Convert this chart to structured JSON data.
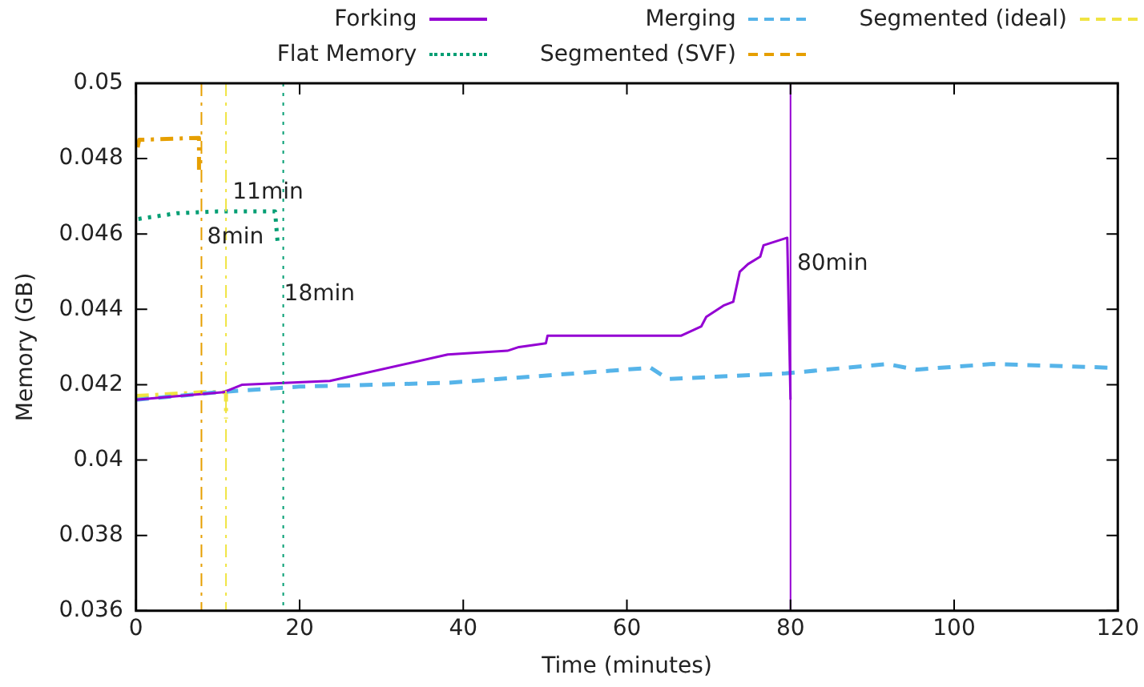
{
  "chart_data": {
    "type": "line",
    "xlabel": "Time (minutes)",
    "ylabel": "Memory (GB)",
    "xlim": [
      0,
      120
    ],
    "xticks": [
      0,
      20,
      40,
      60,
      80,
      100,
      120
    ],
    "ylim": [
      0.036,
      0.05
    ],
    "yticks": [
      0.036,
      0.038,
      0.04,
      0.042,
      0.044,
      0.046,
      0.048,
      0.05
    ],
    "grid": false,
    "legend": "top",
    "marker": "none",
    "series": [
      {
        "name": "Forking",
        "color": "#9400d3",
        "line_style": "solid",
        "x": [
          0,
          10.7,
          13,
          23.7,
          38.1,
          45.4,
          46.8,
          50.1,
          50.3,
          66.6,
          69.1,
          69.7,
          71.8,
          73,
          73.8,
          74.8,
          76.3,
          76.7,
          79.6,
          80
        ],
        "values": [
          0.0416,
          0.0418,
          0.042,
          0.0421,
          0.0428,
          0.0429,
          0.043,
          0.0431,
          0.0433,
          0.0433,
          0.04355,
          0.0438,
          0.0441,
          0.0442,
          0.045,
          0.0452,
          0.0454,
          0.0457,
          0.0459,
          0.0416
        ]
      },
      {
        "name": "Merging",
        "color": "#56b4e9",
        "line_style": "dashed",
        "x": [
          0,
          10,
          20,
          38.1,
          62.9,
          65,
          79.4,
          91.8,
          95.3,
          104.7,
          119.2
        ],
        "values": [
          0.0416,
          0.0418,
          0.04195,
          0.04205,
          0.04245,
          0.04215,
          0.0423,
          0.04255,
          0.0424,
          0.04255,
          0.04245
        ]
      },
      {
        "name": "Segmented (ideal)",
        "color": "#f0e442",
        "line_style": "dashdot",
        "x": [
          0,
          8,
          11,
          11
        ],
        "values": [
          0.0417,
          0.0418,
          0.0418,
          0.0411
        ]
      },
      {
        "name": "Flat Memory",
        "color": "#009e73",
        "line_style": "dotted",
        "x": [
          0.3,
          5,
          10,
          17,
          17.3
        ],
        "values": [
          0.0464,
          0.04655,
          0.0466,
          0.0466,
          0.0458
        ]
      },
      {
        "name": "Segmented (SVF)",
        "color": "#e69f00",
        "line_style": "dashdot",
        "x": [
          0.2,
          0.4,
          7.7,
          7.7
        ],
        "values": [
          0.0483,
          0.0485,
          0.04855,
          0.0477
        ]
      }
    ],
    "ref_lines": [
      {
        "axis": "x",
        "value": 8,
        "color": "#e69f00",
        "line_style": "dashdot"
      },
      {
        "axis": "x",
        "value": 11,
        "color": "#f0e442",
        "line_style": "dashdot"
      },
      {
        "axis": "x",
        "value": 18,
        "color": "#009e73",
        "line_style": "dotted"
      },
      {
        "axis": "x",
        "value": 80,
        "color": "#9400d3",
        "line_style": "solid"
      }
    ],
    "annotations": [
      {
        "text": "8min",
        "x": 8.7,
        "y": 0.0459
      },
      {
        "text": "11min",
        "x": 11.8,
        "y": 0.0471
      },
      {
        "text": "18min",
        "x": 18.1,
        "y": 0.0444
      },
      {
        "text": "80min",
        "x": 80.8,
        "y": 0.0452
      }
    ]
  }
}
